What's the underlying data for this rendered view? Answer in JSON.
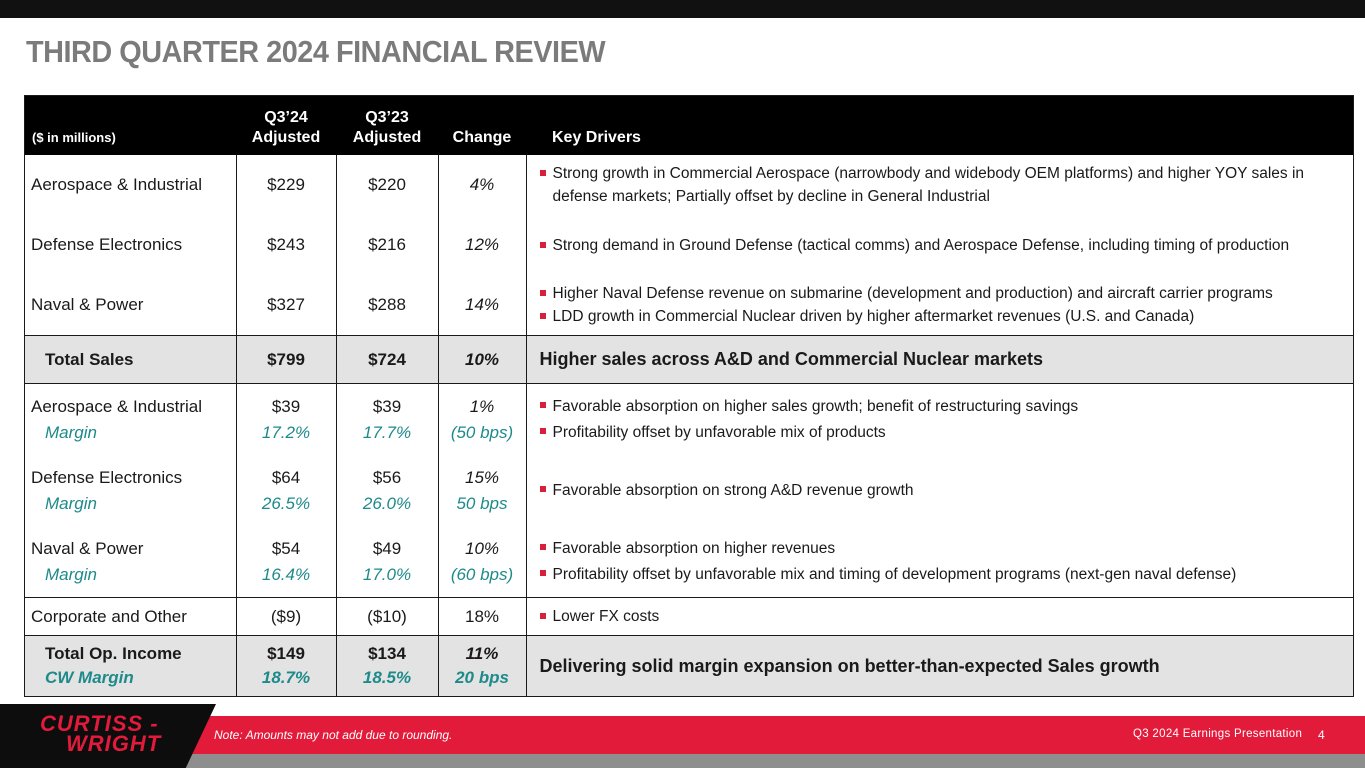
{
  "title": "THIRD QUARTER 2024 FINANCIAL REVIEW",
  "table": {
    "header": {
      "units": "($ in millions)",
      "q324_line1": "Q3’24",
      "q324_line2": "Adjusted",
      "q323_line1": "Q3’23",
      "q323_line2": "Adjusted",
      "change": "Change",
      "drivers": "Key Drivers"
    },
    "sales": [
      {
        "name": "Aerospace & Industrial",
        "q324": "$229",
        "q323": "$220",
        "change": "4%",
        "drivers": [
          "Strong growth in Commercial Aerospace (narrowbody and widebody OEM platforms) and higher YOY sales in defense markets; Partially offset by decline in General Industrial"
        ]
      },
      {
        "name": "Defense Electronics",
        "q324": "$243",
        "q323": "$216",
        "change": "12%",
        "drivers": [
          "Strong demand in Ground Defense (tactical comms) and Aerospace Defense, including timing of production"
        ]
      },
      {
        "name": "Naval & Power",
        "q324": "$327",
        "q323": "$288",
        "change": "14%",
        "drivers": [
          "Higher Naval Defense revenue on submarine (development and production) and aircraft carrier programs",
          "LDD growth in Commercial Nuclear driven by higher aftermarket revenues (U.S. and Canada)"
        ]
      }
    ],
    "total_sales": {
      "name": "Total Sales",
      "q324": "$799",
      "q323": "$724",
      "change": "10%",
      "driver": "Higher sales across A&D and Commercial Nuclear markets"
    },
    "op_income": [
      {
        "name": "Aerospace & Industrial",
        "margin_label": "Margin",
        "q324": "$39",
        "q324_margin": "17.2%",
        "q323": "$39",
        "q323_margin": "17.7%",
        "change": "1%",
        "change_margin": "(50 bps)",
        "drivers": [
          "Favorable absorption on higher sales growth; benefit of restructuring savings",
          "Profitability offset by unfavorable mix of products"
        ]
      },
      {
        "name": "Defense Electronics",
        "margin_label": "Margin",
        "q324": "$64",
        "q324_margin": "26.5%",
        "q323": "$56",
        "q323_margin": "26.0%",
        "change": "15%",
        "change_margin": "50 bps",
        "drivers": [
          "Favorable absorption on strong A&D revenue growth"
        ]
      },
      {
        "name": "Naval & Power",
        "margin_label": "Margin",
        "q324": "$54",
        "q324_margin": "16.4%",
        "q323": "$49",
        "q323_margin": "17.0%",
        "change": "10%",
        "change_margin": "(60 bps)",
        "drivers": [
          "Favorable absorption on higher revenues",
          "Profitability offset by unfavorable mix and timing of development programs (next-gen naval defense)"
        ]
      }
    ],
    "corporate": {
      "name": "Corporate and Other",
      "q324": "($9)",
      "q323": "($10)",
      "change": "18%",
      "drivers": [
        "Lower FX costs"
      ]
    },
    "total_oi": {
      "name": "Total Op. Income",
      "margin_label": "CW Margin",
      "q324": "$149",
      "q324_margin": "18.7%",
      "q323": "$134",
      "q323_margin": "18.5%",
      "change": "11%",
      "change_margin": "20 bps",
      "driver": "Delivering solid margin expansion on better-than-expected Sales growth"
    }
  },
  "footer": {
    "logo_line1": "CURTISS -",
    "logo_line2": "WRIGHT",
    "note": "Note: Amounts may not add due to rounding.",
    "presentation": "Q3 2024 Earnings Presentation",
    "page": "4"
  },
  "colors": {
    "accent": "#e31b3b",
    "margin_text": "#1e8a8a",
    "header_bg": "#000000",
    "total_bg": "#e3e3e3"
  }
}
